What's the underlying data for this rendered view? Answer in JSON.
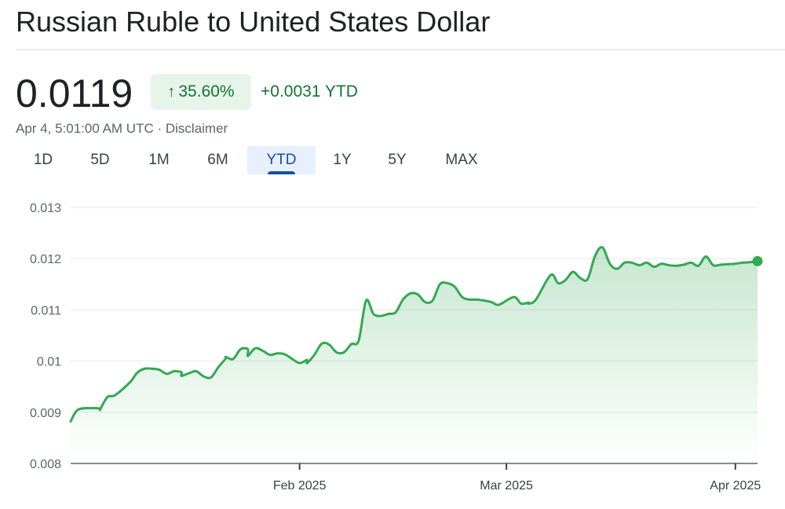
{
  "header": {
    "title": "Russian Ruble to United States Dollar"
  },
  "quote": {
    "price": "0.0119",
    "percent_change": "35.60%",
    "arrow_icon": "arrow-up-icon",
    "absolute_change": "+0.0031 YTD",
    "timestamp": "Apr 4, 5:01:00 AM UTC · ",
    "disclaimer_label": "Disclaimer"
  },
  "tabs": [
    {
      "label": "1D",
      "active": false
    },
    {
      "label": "5D",
      "active": false
    },
    {
      "label": "1M",
      "active": false
    },
    {
      "label": "6M",
      "active": false
    },
    {
      "label": "YTD",
      "active": true
    },
    {
      "label": "1Y",
      "active": false
    },
    {
      "label": "5Y",
      "active": false
    },
    {
      "label": "MAX",
      "active": false
    }
  ],
  "colors": {
    "line": "#34a853",
    "positive_text": "#137333",
    "positive_bg": "#e6f4ea",
    "active_tab": "#174ea6",
    "grid": "#e8eaed",
    "axis": "#5f6368"
  },
  "chart_data": {
    "type": "area",
    "title": "",
    "xlabel": "",
    "ylabel": "",
    "ylim": [
      0.008,
      0.013
    ],
    "xlim": [
      "2025-01-01",
      "2025-04-04"
    ],
    "y_ticks": [
      "0.013",
      "0.012",
      "0.011",
      "0.01",
      "0.009",
      "0.008"
    ],
    "x_ticks": [
      {
        "date": "2025-02-01",
        "label": "Feb 2025"
      },
      {
        "date": "2025-03-01",
        "label": "Mar 2025"
      },
      {
        "date": "2025-04-01",
        "label": "Apr 2025"
      }
    ],
    "grid": true,
    "legend": "none",
    "series": [
      {
        "x": [
          "2025-01-01",
          "2025-01-02",
          "2025-01-04",
          "2025-01-05",
          "2025-01-05",
          "2025-01-06",
          "2025-01-07",
          "2025-01-09",
          "2025-01-10",
          "2025-01-11",
          "2025-01-12",
          "2025-01-13",
          "2025-01-14",
          "2025-01-15",
          "2025-01-16",
          "2025-01-16",
          "2025-01-17",
          "2025-01-18",
          "2025-01-19",
          "2025-01-20",
          "2025-01-21",
          "2025-01-22",
          "2025-01-22",
          "2025-01-23",
          "2025-01-24",
          "2025-01-25",
          "2025-01-25",
          "2025-01-26",
          "2025-01-27",
          "2025-01-28",
          "2025-01-29",
          "2025-01-30",
          "2025-01-31",
          "2025-02-01",
          "2025-02-02",
          "2025-02-02",
          "2025-02-03",
          "2025-02-04",
          "2025-02-05",
          "2025-02-06",
          "2025-02-07",
          "2025-02-08",
          "2025-02-09",
          "2025-02-10",
          "2025-02-11",
          "2025-02-12",
          "2025-02-13",
          "2025-02-14",
          "2025-02-15",
          "2025-02-16",
          "2025-02-17",
          "2025-02-18",
          "2025-02-19",
          "2025-02-20",
          "2025-02-21",
          "2025-02-22",
          "2025-02-23",
          "2025-02-24",
          "2025-02-25",
          "2025-02-26",
          "2025-02-27",
          "2025-02-28",
          "2025-03-02",
          "2025-03-03",
          "2025-03-04",
          "2025-03-04",
          "2025-03-05",
          "2025-03-07",
          "2025-03-08",
          "2025-03-09",
          "2025-03-10",
          "2025-03-11",
          "2025-03-12",
          "2025-03-13",
          "2025-03-14",
          "2025-03-15",
          "2025-03-16",
          "2025-03-17",
          "2025-03-18",
          "2025-03-19",
          "2025-03-20",
          "2025-03-21",
          "2025-03-22",
          "2025-03-23",
          "2025-03-24",
          "2025-03-25",
          "2025-03-26",
          "2025-03-27",
          "2025-03-28",
          "2025-03-29",
          "2025-03-30",
          "2025-03-31",
          "2025-04-01",
          "2025-04-02",
          "2025-04-03",
          "2025-04-04"
        ],
        "y": [
          0.00882,
          0.00905,
          0.00908,
          0.00907,
          0.00906,
          0.0093,
          0.00933,
          0.00958,
          0.00977,
          0.00985,
          0.00985,
          0.00983,
          0.00975,
          0.0098,
          0.00978,
          0.00971,
          0.00976,
          0.0098,
          0.0097,
          0.00968,
          0.00988,
          0.01005,
          0.01008,
          0.01004,
          0.01023,
          0.01023,
          0.0101,
          0.01025,
          0.0102,
          0.01012,
          0.01015,
          0.01013,
          0.01004,
          0.00996,
          0.01002,
          0.00996,
          0.01012,
          0.01034,
          0.01032,
          0.01017,
          0.01017,
          0.01033,
          0.0104,
          0.01118,
          0.01092,
          0.01088,
          0.01092,
          0.01095,
          0.0112,
          0.01132,
          0.0113,
          0.01115,
          0.01118,
          0.0115,
          0.01152,
          0.01145,
          0.01125,
          0.0112,
          0.0112,
          0.01118,
          0.01115,
          0.0111,
          0.01125,
          0.01112,
          0.01114,
          0.01112,
          0.0112,
          0.01168,
          0.01152,
          0.01158,
          0.01174,
          0.01162,
          0.0116,
          0.01205,
          0.01222,
          0.0119,
          0.0118,
          0.01192,
          0.01192,
          0.01187,
          0.01192,
          0.01184,
          0.0119,
          0.01187,
          0.01186,
          0.01188,
          0.01192,
          0.01186,
          0.01204,
          0.01187,
          0.01188,
          0.01189,
          0.0119,
          0.01192,
          0.01193,
          0.01195
        ]
      }
    ]
  }
}
